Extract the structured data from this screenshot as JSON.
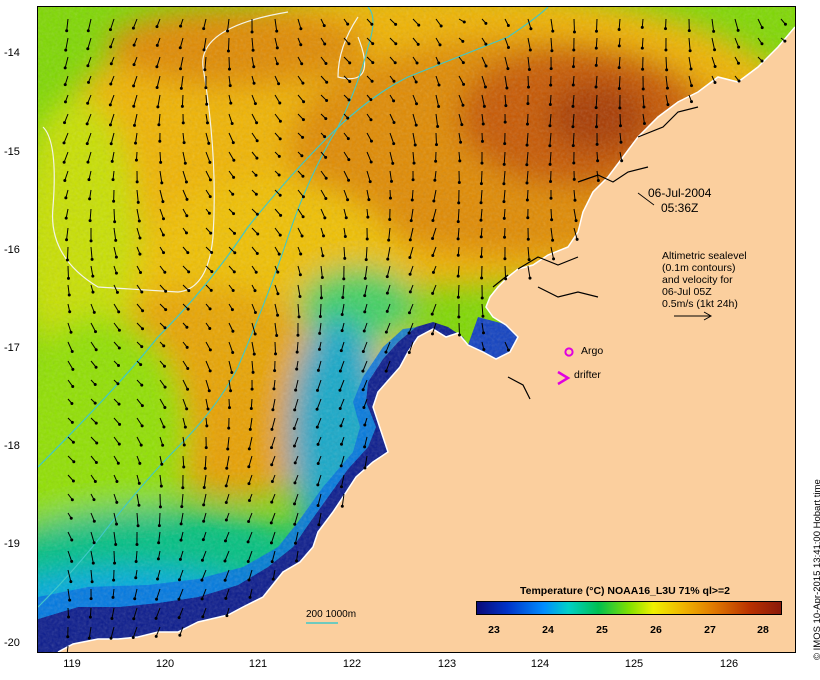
{
  "map": {
    "y_ticks": [
      "-14",
      "-15",
      "-16",
      "-17",
      "-18",
      "-19",
      "-20"
    ],
    "x_ticks": [
      "119",
      "120",
      "121",
      "122",
      "123",
      "124",
      "125",
      "126"
    ],
    "date": "06-Jul-2004",
    "time": "05:36Z",
    "info_lines": [
      "Altimetric sealevel",
      "(0.1m contours)",
      "and velocity for",
      "06-Jul 05Z",
      "0.5m/s (1kt 24h)"
    ],
    "argo_label": "Argo",
    "drifter_label": "drifter",
    "scale_label": "200  1000m",
    "legend_title": "Temperature (°C) NOAA16_L3U 71% ql>=2",
    "legend_ticks": [
      "23",
      "24",
      "25",
      "26",
      "27",
      "28"
    ],
    "credit": "© IMOS 10-Apr-2015 13:41:00 Hobart time",
    "colors": {
      "land": "#fbcf9e",
      "argo": "#e000e0",
      "drifter": "#e000e0",
      "bathymetry": "#40c8c8",
      "coastline": "#ffffff"
    }
  }
}
